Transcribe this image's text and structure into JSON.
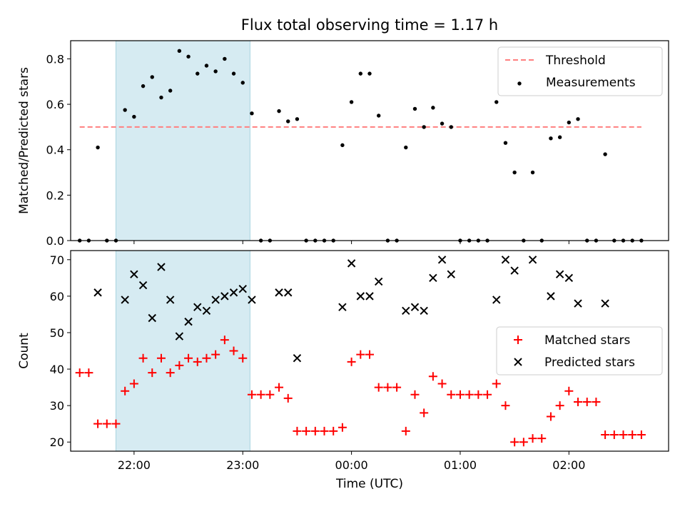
{
  "chart_data": [
    {
      "type": "scatter",
      "title": "Flux total observing time = 1.17 h",
      "xlabel": "",
      "ylabel": "Matched/Predicted stars",
      "xlim": [
        "21:25",
        "02:55"
      ],
      "ylim": [
        0.0,
        0.88
      ],
      "yticks": [
        "0.0",
        "0.2",
        "0.4",
        "0.6",
        "0.8"
      ],
      "grid": false,
      "legend": "top-right",
      "highlight_span": [
        "21:50",
        "23:04"
      ],
      "threshold": {
        "name": "Threshold",
        "value": 0.5,
        "x": [
          "21:30",
          "02:40"
        ],
        "color": "#ff7f7f"
      },
      "series": [
        {
          "name": "Measurements",
          "color": "#000000",
          "points": [
            [
              "21:30",
              0.0
            ],
            [
              "21:35",
              0.0
            ],
            [
              "21:40",
              0.41
            ],
            [
              "21:45",
              0.0
            ],
            [
              "21:50",
              0.0
            ],
            [
              "21:55",
              0.575
            ],
            [
              "22:00",
              0.545
            ],
            [
              "22:05",
              0.68
            ],
            [
              "22:10",
              0.72
            ],
            [
              "22:15",
              0.63
            ],
            [
              "22:20",
              0.66
            ],
            [
              "22:25",
              0.835
            ],
            [
              "22:30",
              0.81
            ],
            [
              "22:35",
              0.735
            ],
            [
              "22:40",
              0.77
            ],
            [
              "22:45",
              0.745
            ],
            [
              "22:50",
              0.8
            ],
            [
              "22:55",
              0.735
            ],
            [
              "23:00",
              0.695
            ],
            [
              "23:05",
              0.56
            ],
            [
              "23:10",
              0.0
            ],
            [
              "23:15",
              0.0
            ],
            [
              "23:20",
              0.57
            ],
            [
              "23:25",
              0.525
            ],
            [
              "23:30",
              0.535
            ],
            [
              "23:35",
              0.0
            ],
            [
              "23:40",
              0.0
            ],
            [
              "23:45",
              0.0
            ],
            [
              "23:50",
              0.0
            ],
            [
              "23:55",
              0.42
            ],
            [
              "00:00",
              0.61
            ],
            [
              "00:05",
              0.735
            ],
            [
              "00:10",
              0.735
            ],
            [
              "00:15",
              0.55
            ],
            [
              "00:20",
              0.0
            ],
            [
              "00:25",
              0.0
            ],
            [
              "00:30",
              0.41
            ],
            [
              "00:35",
              0.58
            ],
            [
              "00:40",
              0.5
            ],
            [
              "00:45",
              0.585
            ],
            [
              "00:50",
              0.515
            ],
            [
              "00:55",
              0.5
            ],
            [
              "01:00",
              0.0
            ],
            [
              "01:05",
              0.0
            ],
            [
              "01:10",
              0.0
            ],
            [
              "01:15",
              0.0
            ],
            [
              "01:20",
              0.61
            ],
            [
              "01:25",
              0.43
            ],
            [
              "01:30",
              0.3
            ],
            [
              "01:35",
              0.0
            ],
            [
              "01:40",
              0.3
            ],
            [
              "01:45",
              0.0
            ],
            [
              "01:50",
              0.45
            ],
            [
              "01:55",
              0.455
            ],
            [
              "02:00",
              0.52
            ],
            [
              "02:05",
              0.535
            ],
            [
              "02:10",
              0.0
            ],
            [
              "02:15",
              0.0
            ],
            [
              "02:20",
              0.38
            ],
            [
              "02:25",
              0.0
            ],
            [
              "02:30",
              0.0
            ],
            [
              "02:35",
              0.0
            ],
            [
              "02:40",
              0.0
            ]
          ]
        }
      ]
    },
    {
      "type": "scatter",
      "title": "",
      "xlabel": "Time (UTC)",
      "ylabel": "Count",
      "xlim": [
        "21:25",
        "02:55"
      ],
      "xticks": [
        "22:00",
        "23:00",
        "00:00",
        "01:00",
        "02:00"
      ],
      "ylim": [
        17.5,
        72.5
      ],
      "yticks": [
        "20",
        "30",
        "40",
        "50",
        "60",
        "70"
      ],
      "grid": false,
      "legend": "center-right",
      "highlight_span": [
        "21:50",
        "23:04"
      ],
      "series": [
        {
          "name": "Matched stars",
          "marker": "+",
          "color": "#ff0000",
          "points": [
            [
              "21:30",
              39
            ],
            [
              "21:35",
              39
            ],
            [
              "21:40",
              25
            ],
            [
              "21:45",
              25
            ],
            [
              "21:50",
              25
            ],
            [
              "21:55",
              34
            ],
            [
              "22:00",
              36
            ],
            [
              "22:05",
              43
            ],
            [
              "22:10",
              39
            ],
            [
              "22:15",
              43
            ],
            [
              "22:20",
              39
            ],
            [
              "22:25",
              41
            ],
            [
              "22:30",
              43
            ],
            [
              "22:35",
              42
            ],
            [
              "22:40",
              43
            ],
            [
              "22:45",
              44
            ],
            [
              "22:50",
              48
            ],
            [
              "22:55",
              45
            ],
            [
              "23:00",
              43
            ],
            [
              "23:05",
              33
            ],
            [
              "23:10",
              33
            ],
            [
              "23:15",
              33
            ],
            [
              "23:20",
              35
            ],
            [
              "23:25",
              32
            ],
            [
              "23:30",
              23
            ],
            [
              "23:35",
              23
            ],
            [
              "23:40",
              23
            ],
            [
              "23:45",
              23
            ],
            [
              "23:50",
              23
            ],
            [
              "23:55",
              24
            ],
            [
              "00:00",
              42
            ],
            [
              "00:05",
              44
            ],
            [
              "00:10",
              44
            ],
            [
              "00:15",
              35
            ],
            [
              "00:20",
              35
            ],
            [
              "00:25",
              35
            ],
            [
              "00:30",
              23
            ],
            [
              "00:35",
              33
            ],
            [
              "00:40",
              28
            ],
            [
              "00:45",
              38
            ],
            [
              "00:50",
              36
            ],
            [
              "00:55",
              33
            ],
            [
              "01:00",
              33
            ],
            [
              "01:05",
              33
            ],
            [
              "01:10",
              33
            ],
            [
              "01:15",
              33
            ],
            [
              "01:20",
              36
            ],
            [
              "01:25",
              30
            ],
            [
              "01:30",
              20
            ],
            [
              "01:35",
              20
            ],
            [
              "01:40",
              21
            ],
            [
              "01:45",
              21
            ],
            [
              "01:50",
              27
            ],
            [
              "01:55",
              30
            ],
            [
              "02:00",
              34
            ],
            [
              "02:05",
              31
            ],
            [
              "02:10",
              31
            ],
            [
              "02:15",
              31
            ],
            [
              "02:20",
              22
            ],
            [
              "02:25",
              22
            ],
            [
              "02:30",
              22
            ],
            [
              "02:35",
              22
            ],
            [
              "02:40",
              22
            ]
          ]
        },
        {
          "name": "Predicted stars",
          "marker": "x",
          "color": "#000000",
          "points": [
            [
              "21:40",
              61
            ],
            [
              "21:55",
              59
            ],
            [
              "22:00",
              66
            ],
            [
              "22:05",
              63
            ],
            [
              "22:10",
              54
            ],
            [
              "22:15",
              68
            ],
            [
              "22:20",
              59
            ],
            [
              "22:25",
              49
            ],
            [
              "22:30",
              53
            ],
            [
              "22:35",
              57
            ],
            [
              "22:40",
              56
            ],
            [
              "22:45",
              59
            ],
            [
              "22:50",
              60
            ],
            [
              "22:55",
              61
            ],
            [
              "23:00",
              62
            ],
            [
              "23:05",
              59
            ],
            [
              "23:20",
              61
            ],
            [
              "23:25",
              61
            ],
            [
              "23:30",
              43
            ],
            [
              "23:55",
              57
            ],
            [
              "00:00",
              69
            ],
            [
              "00:05",
              60
            ],
            [
              "00:10",
              60
            ],
            [
              "00:15",
              64
            ],
            [
              "00:30",
              56
            ],
            [
              "00:35",
              57
            ],
            [
              "00:40",
              56
            ],
            [
              "00:45",
              65
            ],
            [
              "00:50",
              70
            ],
            [
              "00:55",
              66
            ],
            [
              "01:20",
              59
            ],
            [
              "01:25",
              70
            ],
            [
              "01:30",
              67
            ],
            [
              "01:40",
              70
            ],
            [
              "01:50",
              60
            ],
            [
              "01:55",
              66
            ],
            [
              "02:00",
              65
            ],
            [
              "02:05",
              58
            ],
            [
              "02:20",
              58
            ]
          ]
        }
      ]
    }
  ]
}
